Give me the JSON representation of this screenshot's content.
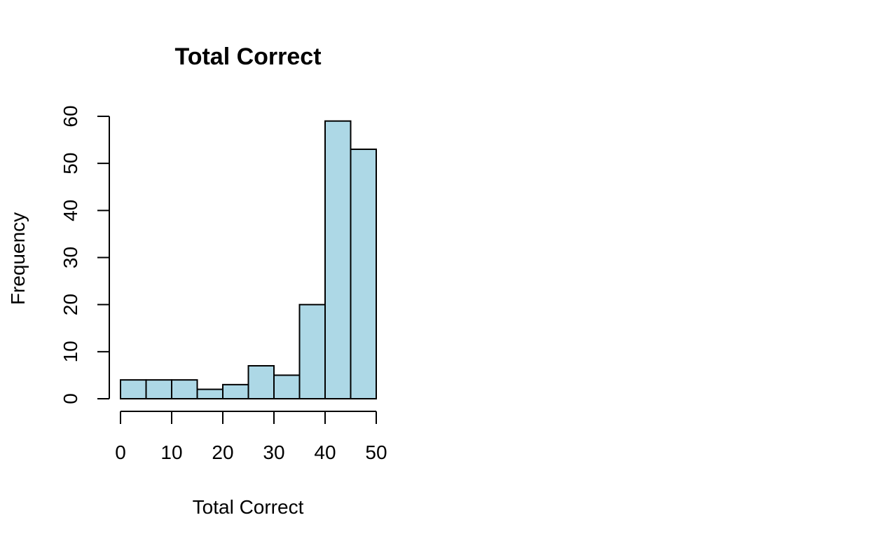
{
  "chart_data": {
    "type": "bar",
    "title": "Total Correct",
    "xlabel": "Total Correct",
    "ylabel": "Frequency",
    "bar_color": "#add8e6",
    "bin_edges": [
      0,
      5,
      10,
      15,
      20,
      25,
      30,
      35,
      40,
      45,
      50
    ],
    "values": [
      4,
      4,
      4,
      2,
      3,
      7,
      5,
      20,
      59,
      53
    ],
    "xlim": [
      0,
      50
    ],
    "ylim": [
      0,
      60
    ],
    "x_ticks": [
      "0",
      "10",
      "20",
      "30",
      "40",
      "50"
    ],
    "y_ticks": [
      "0",
      "10",
      "20",
      "30",
      "40",
      "50",
      "60"
    ],
    "grid": false,
    "legend": "none"
  }
}
